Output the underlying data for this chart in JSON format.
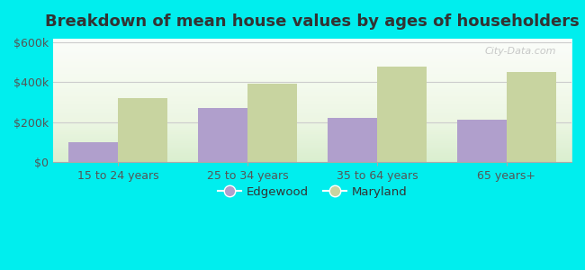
{
  "title": "Breakdown of mean house values by ages of householders",
  "categories": [
    "15 to 24 years",
    "25 to 34 years",
    "35 to 64 years",
    "65 years+"
  ],
  "edgewood_values": [
    100000,
    270000,
    220000,
    210000
  ],
  "maryland_values": [
    320000,
    395000,
    480000,
    450000
  ],
  "edgewood_color": "#b09fcc",
  "maryland_color": "#c8d4a0",
  "background_color": "#00EEEE",
  "yticks": [
    0,
    200000,
    400000,
    600000
  ],
  "ytick_labels": [
    "$0",
    "$200k",
    "$400k",
    "$600k"
  ],
  "ylim": [
    0,
    620000
  ],
  "bar_width": 0.38,
  "title_fontsize": 13,
  "legend_labels": [
    "Edgewood",
    "Maryland"
  ],
  "watermark": "City-Data.com"
}
